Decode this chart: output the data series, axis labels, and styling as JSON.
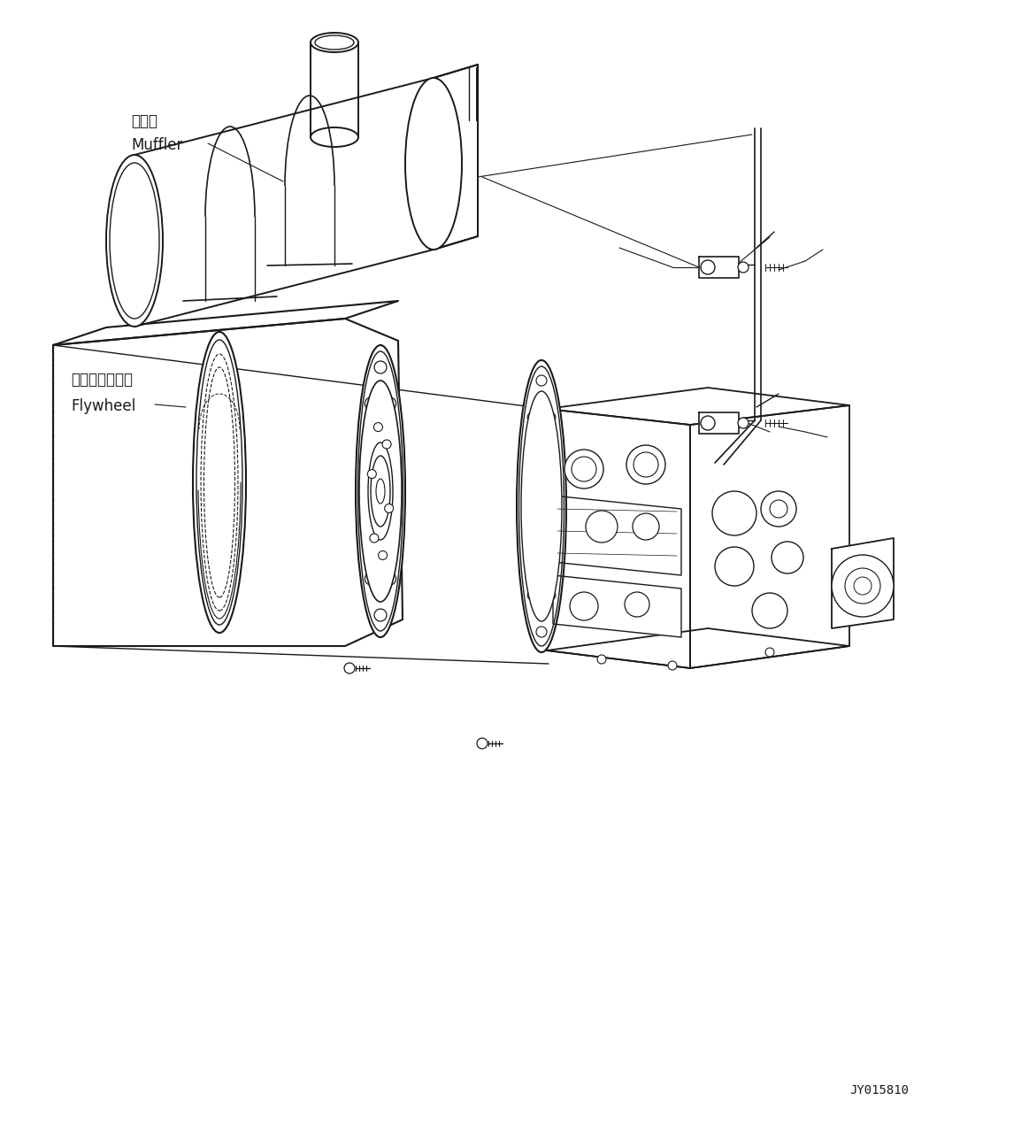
{
  "background_color": "#ffffff",
  "line_color": "#1a1a1a",
  "figure_id": "JY015810",
  "label_muffler_jp": "マフラ",
  "label_muffler_en": "Muffler",
  "label_flywheel_jp": "フライホイール",
  "label_flywheel_en": "Flywheel",
  "fig_width": 11.63,
  "fig_height": 12.87,
  "dpi": 100
}
